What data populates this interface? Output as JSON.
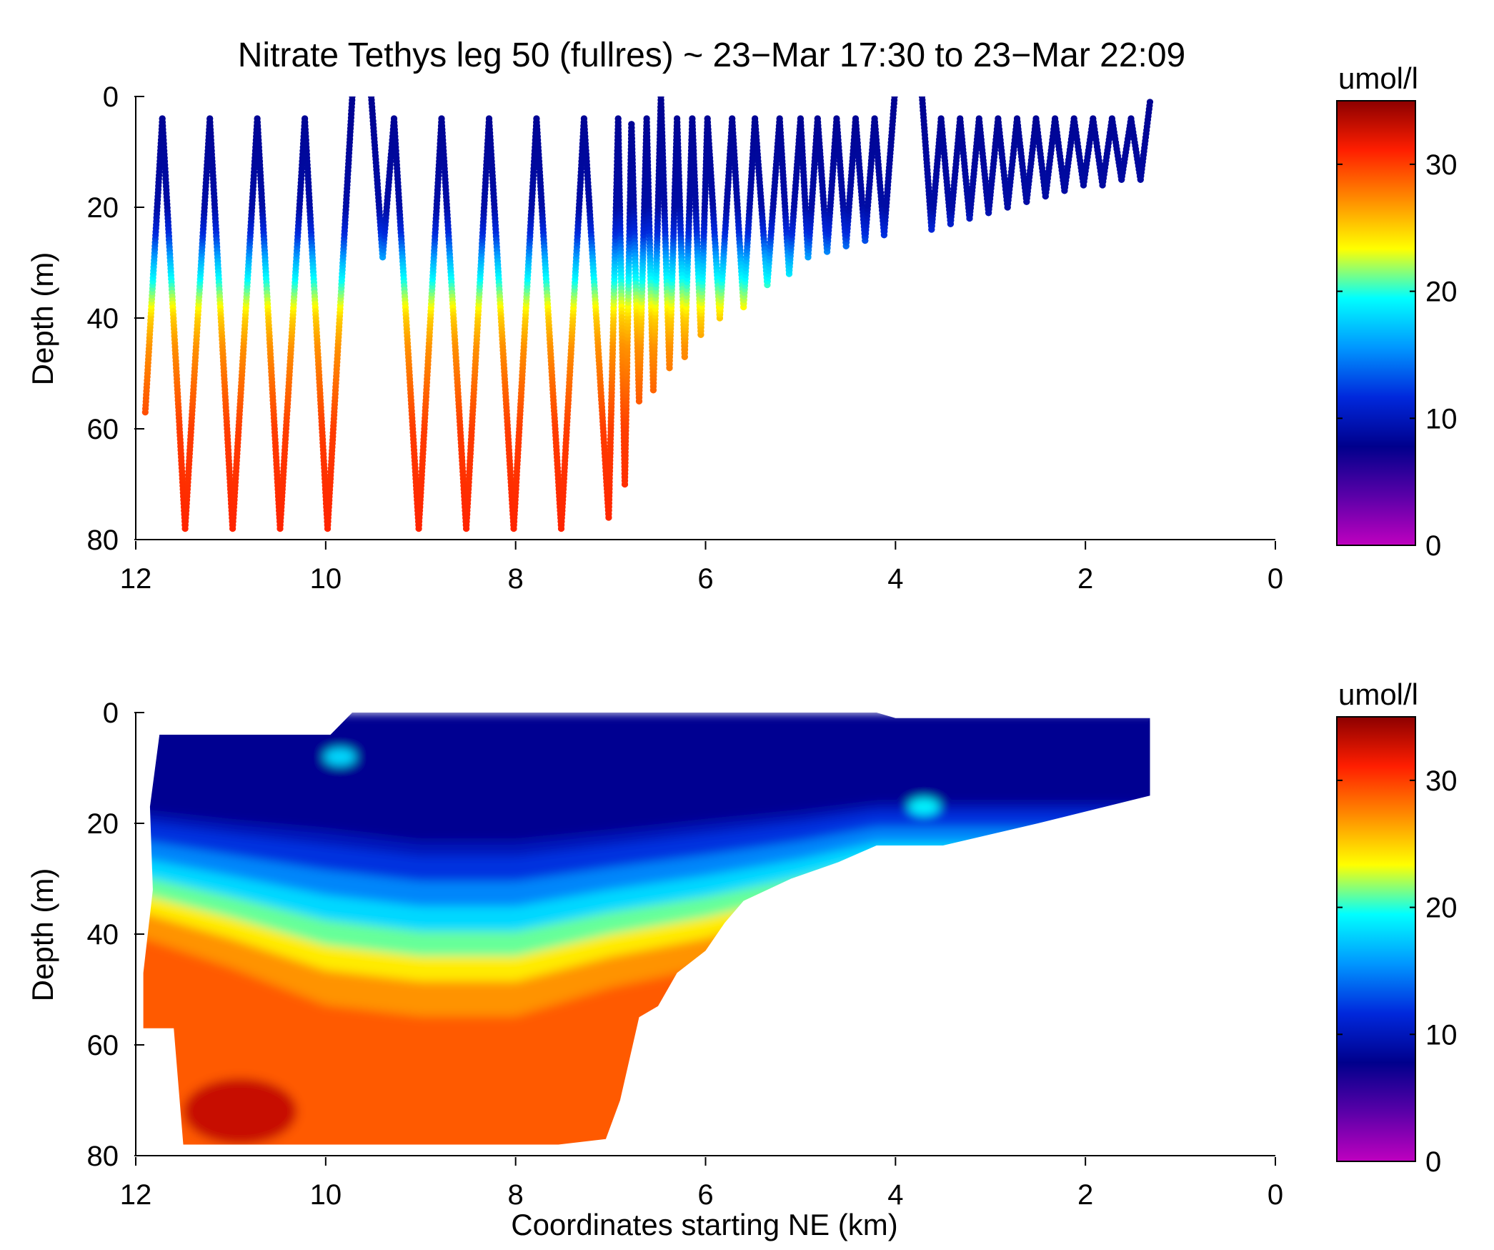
{
  "figure": {
    "title": "Nitrate Tethys leg 50 (fullres) ~ 23−Mar 17:30 to 23−Mar 22:09",
    "colorbar_unit": "umol/l",
    "colorbar_ticks": [
      "0",
      "10",
      "20",
      "30"
    ],
    "colormap": [
      "#bf00bf",
      "#5a00a8",
      "#00008c",
      "#0028dc",
      "#0096ff",
      "#00ffff",
      "#ffff00",
      "#ff8c00",
      "#ff1e00",
      "#8c0000"
    ]
  },
  "chart_data": [
    {
      "type": "scatter",
      "title": "Nitrate Tethys leg 50 (fullres) ~ 23−Mar 17:30 to 23−Mar 22:09",
      "xlabel": "",
      "ylabel": "Depth (m)",
      "xlim": [
        12,
        0
      ],
      "ylim": [
        80,
        0
      ],
      "xticks": [
        "12",
        "10",
        "8",
        "6",
        "4",
        "2",
        "0"
      ],
      "yticks": [
        "0",
        "20",
        "40",
        "60",
        "80"
      ],
      "clim": [
        0,
        35
      ],
      "colorbar_label": "umol/l",
      "track_vertices": [
        [
          11.9,
          57
        ],
        [
          11.72,
          4
        ],
        [
          11.48,
          78
        ],
        [
          11.22,
          4
        ],
        [
          10.98,
          78
        ],
        [
          10.72,
          4
        ],
        [
          10.48,
          78
        ],
        [
          10.22,
          4
        ],
        [
          9.98,
          78
        ],
        [
          9.72,
          0
        ],
        [
          9.52,
          0
        ],
        [
          9.4,
          29
        ],
        [
          9.28,
          4
        ],
        [
          9.02,
          78
        ],
        [
          8.78,
          4
        ],
        [
          8.52,
          78
        ],
        [
          8.28,
          4
        ],
        [
          8.02,
          78
        ],
        [
          7.78,
          4
        ],
        [
          7.52,
          78
        ],
        [
          7.28,
          4
        ],
        [
          7.02,
          76
        ],
        [
          6.92,
          4
        ],
        [
          6.85,
          70
        ],
        [
          6.78,
          5
        ],
        [
          6.7,
          55
        ],
        [
          6.62,
          4
        ],
        [
          6.55,
          53
        ],
        [
          6.47,
          0
        ],
        [
          6.38,
          49
        ],
        [
          6.3,
          4
        ],
        [
          6.22,
          47
        ],
        [
          6.14,
          4
        ],
        [
          6.05,
          43
        ],
        [
          5.98,
          4
        ],
        [
          5.85,
          40
        ],
        [
          5.72,
          4
        ],
        [
          5.6,
          38
        ],
        [
          5.48,
          4
        ],
        [
          5.35,
          34
        ],
        [
          5.22,
          4
        ],
        [
          5.12,
          32
        ],
        [
          5.0,
          4
        ],
        [
          4.92,
          29
        ],
        [
          4.82,
          4
        ],
        [
          4.72,
          28
        ],
        [
          4.62,
          4
        ],
        [
          4.52,
          27
        ],
        [
          4.42,
          4
        ],
        [
          4.32,
          26
        ],
        [
          4.22,
          4
        ],
        [
          4.12,
          25
        ],
        [
          4.01,
          0
        ],
        [
          3.72,
          0
        ],
        [
          3.62,
          24
        ],
        [
          3.52,
          4
        ],
        [
          3.42,
          23
        ],
        [
          3.32,
          4
        ],
        [
          3.22,
          22
        ],
        [
          3.12,
          4
        ],
        [
          3.02,
          21
        ],
        [
          2.92,
          4
        ],
        [
          2.82,
          20
        ],
        [
          2.72,
          4
        ],
        [
          2.62,
          19
        ],
        [
          2.52,
          4
        ],
        [
          2.42,
          18
        ],
        [
          2.32,
          4
        ],
        [
          2.22,
          17
        ],
        [
          2.12,
          4
        ],
        [
          2.02,
          16
        ],
        [
          1.92,
          4
        ],
        [
          1.82,
          16
        ],
        [
          1.72,
          4
        ],
        [
          1.62,
          15
        ],
        [
          1.52,
          4
        ],
        [
          1.42,
          15
        ],
        [
          1.32,
          1
        ]
      ],
      "nitrate_profile": {
        "depth_m": [
          0,
          20,
          25,
          30,
          35,
          40,
          45,
          50,
          60,
          80
        ],
        "umol_per_l": [
          8,
          9,
          12,
          17,
          21,
          25,
          27,
          28,
          30,
          31
        ]
      }
    },
    {
      "type": "heatmap",
      "title": "",
      "xlabel": "Coordinates starting NE (km)",
      "ylabel": "Depth (m)",
      "xlim": [
        12,
        0
      ],
      "ylim": [
        80,
        0
      ],
      "xticks": [
        "12",
        "10",
        "8",
        "6",
        "4",
        "2",
        "0"
      ],
      "yticks": [
        "0",
        "20",
        "40",
        "60",
        "80"
      ],
      "clim": [
        0,
        35
      ],
      "colorbar_label": "umol/l",
      "data_extent": [
        [
          11.75,
          4
        ],
        [
          9.95,
          4
        ],
        [
          9.72,
          0
        ],
        [
          4.2,
          0
        ],
        [
          4.0,
          1
        ],
        [
          1.32,
          1
        ],
        [
          1.32,
          15
        ],
        [
          2.5,
          20
        ],
        [
          3.5,
          24
        ],
        [
          4.2,
          24
        ],
        [
          4.6,
          27
        ],
        [
          5.1,
          30
        ],
        [
          5.6,
          34
        ],
        [
          5.8,
          38
        ],
        [
          6.0,
          43
        ],
        [
          6.3,
          47
        ],
        [
          6.5,
          53
        ],
        [
          6.7,
          55
        ],
        [
          6.9,
          70
        ],
        [
          7.05,
          77
        ],
        [
          7.55,
          78
        ],
        [
          11.5,
          78
        ],
        [
          11.6,
          57
        ],
        [
          11.92,
          57
        ],
        [
          11.92,
          47
        ],
        [
          11.82,
          32
        ],
        [
          11.85,
          17
        ]
      ],
      "nitracline_depth_m": {
        "x_km": [
          11.9,
          11.0,
          10.0,
          9.0,
          8.0,
          7.0,
          6.0,
          5.0,
          4.2
        ],
        "top_m": [
          20,
          22,
          24,
          26,
          26,
          24,
          22,
          20,
          18
        ],
        "bottom_m": [
          33,
          37,
          42,
          44,
          44,
          40,
          37,
          33,
          29
        ]
      },
      "features": [
        {
          "type": "high_nitrate_core",
          "x_range_km": [
            10.3,
            11.5
          ],
          "depth_range_m": [
            66,
            78
          ],
          "value": 33
        },
        {
          "type": "elevated_patch",
          "x_km": 9.85,
          "depth_m": 8,
          "value": 18
        },
        {
          "type": "elevated_patch",
          "x_km": 3.7,
          "depth_m": 17,
          "value": 19
        }
      ]
    }
  ]
}
